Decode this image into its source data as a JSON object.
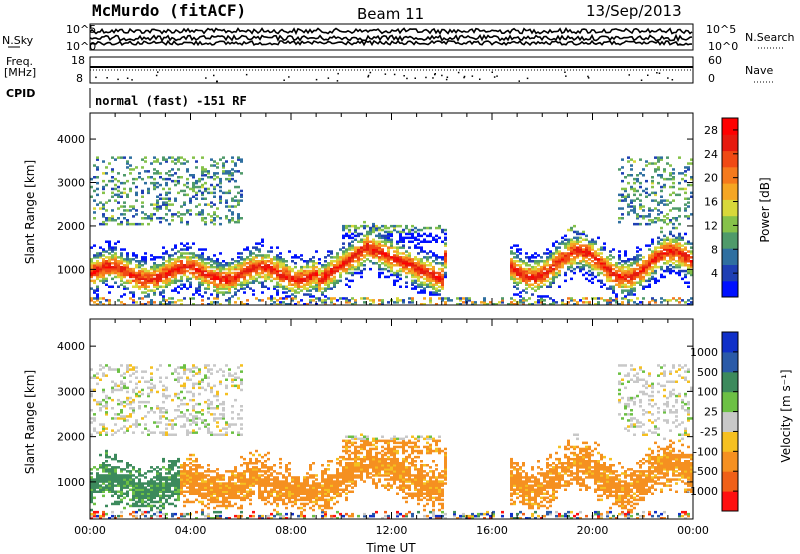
{
  "header": {
    "station": "McMurdo (fitACF)",
    "beam": "Beam 11",
    "date": "13/Sep/2013"
  },
  "summary_panels": {
    "nsky_label": "N.Sky",
    "nsearch_label": "N.Search",
    "noise_ticks": [
      "10^5",
      "10^0"
    ],
    "freq_label_line1": "Freq.",
    "freq_label_line2": "[MHz]",
    "freq_ticks": [
      "18",
      "8"
    ],
    "nave_label": "Nave",
    "nave_ticks": [
      "60",
      "0"
    ],
    "cpid_label": "CPID",
    "cpid_text": "normal (fast) -151 RF"
  },
  "chart_data": [
    {
      "type": "heatmap",
      "name": "power",
      "ylabel": "Slant Range [km]",
      "xlabel": "",
      "ylim": [
        180,
        4600
      ],
      "yticks": [
        1000,
        2000,
        3000,
        4000
      ],
      "xlim_hours": [
        0,
        24
      ],
      "colorbar": {
        "label": "Power [dB]",
        "ticks": [
          4,
          8,
          12,
          16,
          20,
          24,
          28
        ],
        "range": [
          0,
          30
        ],
        "colors": [
          "#0010ff",
          "#1f3fb4",
          "#2f6fa0",
          "#4f9a6a",
          "#86c24a",
          "#d8d83a",
          "#f5a623",
          "#f57a1c",
          "#f04a14",
          "#e61a0e",
          "#ff0000"
        ]
      }
    },
    {
      "type": "heatmap",
      "name": "velocity",
      "ylabel": "Slant Range [km]",
      "xlabel": "Time UT",
      "ylim": [
        180,
        4600
      ],
      "yticks": [
        1000,
        2000,
        3000,
        4000
      ],
      "xlim_hours": [
        0,
        24
      ],
      "x_tick_labels": [
        "00:00",
        "04:00",
        "08:00",
        "12:00",
        "16:00",
        "20:00",
        "00:00"
      ],
      "x_tick_hours": [
        0,
        4,
        8,
        12,
        16,
        20,
        24
      ],
      "colorbar": {
        "label": "Velocity [m s⁻¹]",
        "ticks": [
          "1000",
          "500",
          "100",
          "25",
          "-25",
          "-100",
          "-500",
          "-1000"
        ],
        "colors": [
          "#1030c8",
          "#2a5aa8",
          "#3c8a5c",
          "#6cc044",
          "#c8c8c8",
          "#f5c020",
          "#f59020",
          "#f06018",
          "#ff1010"
        ]
      }
    }
  ]
}
